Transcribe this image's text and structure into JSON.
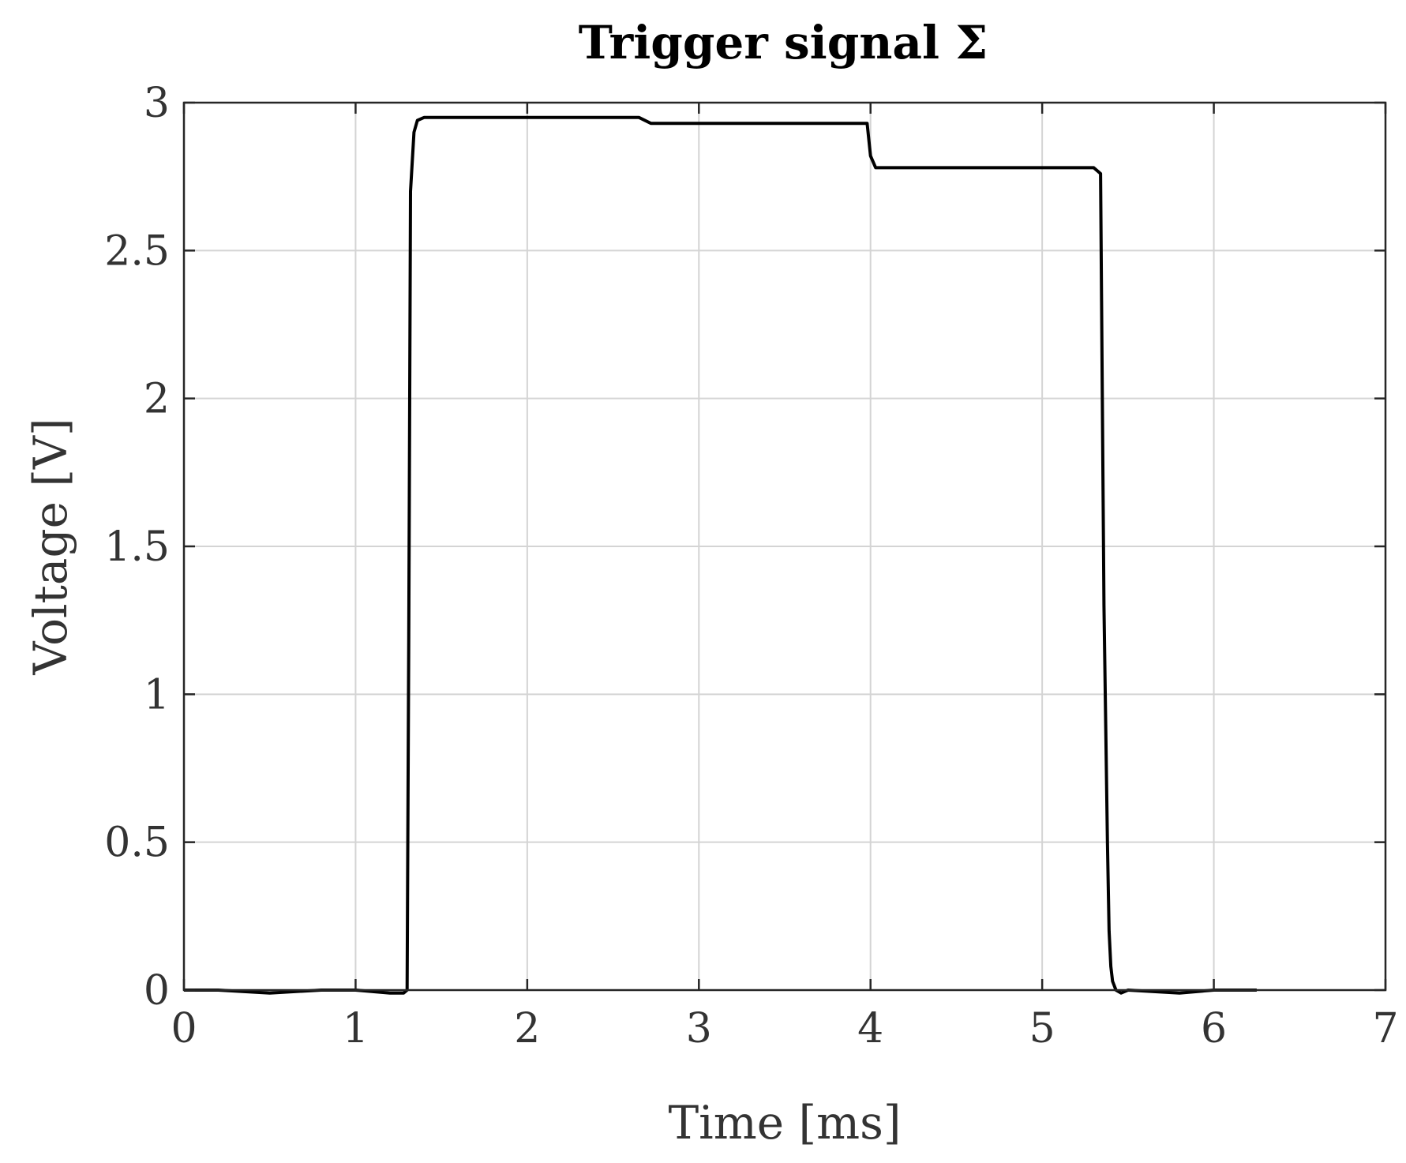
{
  "chart_data": {
    "type": "line",
    "title": "Trigger signal Σ",
    "xlabel": "Time [ms]",
    "ylabel": "Voltage [V]",
    "xlim": [
      0,
      7
    ],
    "ylim": [
      0,
      3
    ],
    "xticks": [
      "0",
      "1",
      "2",
      "3",
      "4",
      "5",
      "6",
      "7"
    ],
    "yticks": [
      "0",
      "0.5",
      "1",
      "1.5",
      "2",
      "2.5",
      "3"
    ],
    "grid": true,
    "line_color": "#000000",
    "series": [
      {
        "x": [
          0,
          0.2,
          0.5,
          0.8,
          1.0,
          1.2,
          1.28,
          1.3,
          1.31,
          1.32,
          1.33,
          1.34,
          1.36,
          1.4,
          1.6,
          2.0,
          2.4,
          2.65,
          2.72,
          2.9,
          3.3,
          3.6,
          3.9,
          3.98,
          4.0,
          4.03,
          4.2,
          4.6,
          5.0,
          5.3,
          5.34,
          5.36,
          5.38,
          5.39,
          5.4,
          5.41,
          5.43,
          5.46,
          5.5,
          5.8,
          6.0,
          6.2,
          6.25
        ],
        "y": [
          0.0,
          0.0,
          -0.01,
          0.0,
          0.0,
          -0.01,
          -0.01,
          0.0,
          1.2,
          2.7,
          2.8,
          2.9,
          2.94,
          2.95,
          2.95,
          2.95,
          2.95,
          2.95,
          2.93,
          2.93,
          2.93,
          2.93,
          2.93,
          2.93,
          2.82,
          2.78,
          2.78,
          2.78,
          2.78,
          2.78,
          2.76,
          1.3,
          0.5,
          0.2,
          0.08,
          0.03,
          0.0,
          -0.01,
          0.0,
          -0.01,
          0.0,
          0.0,
          0.0
        ]
      }
    ]
  }
}
